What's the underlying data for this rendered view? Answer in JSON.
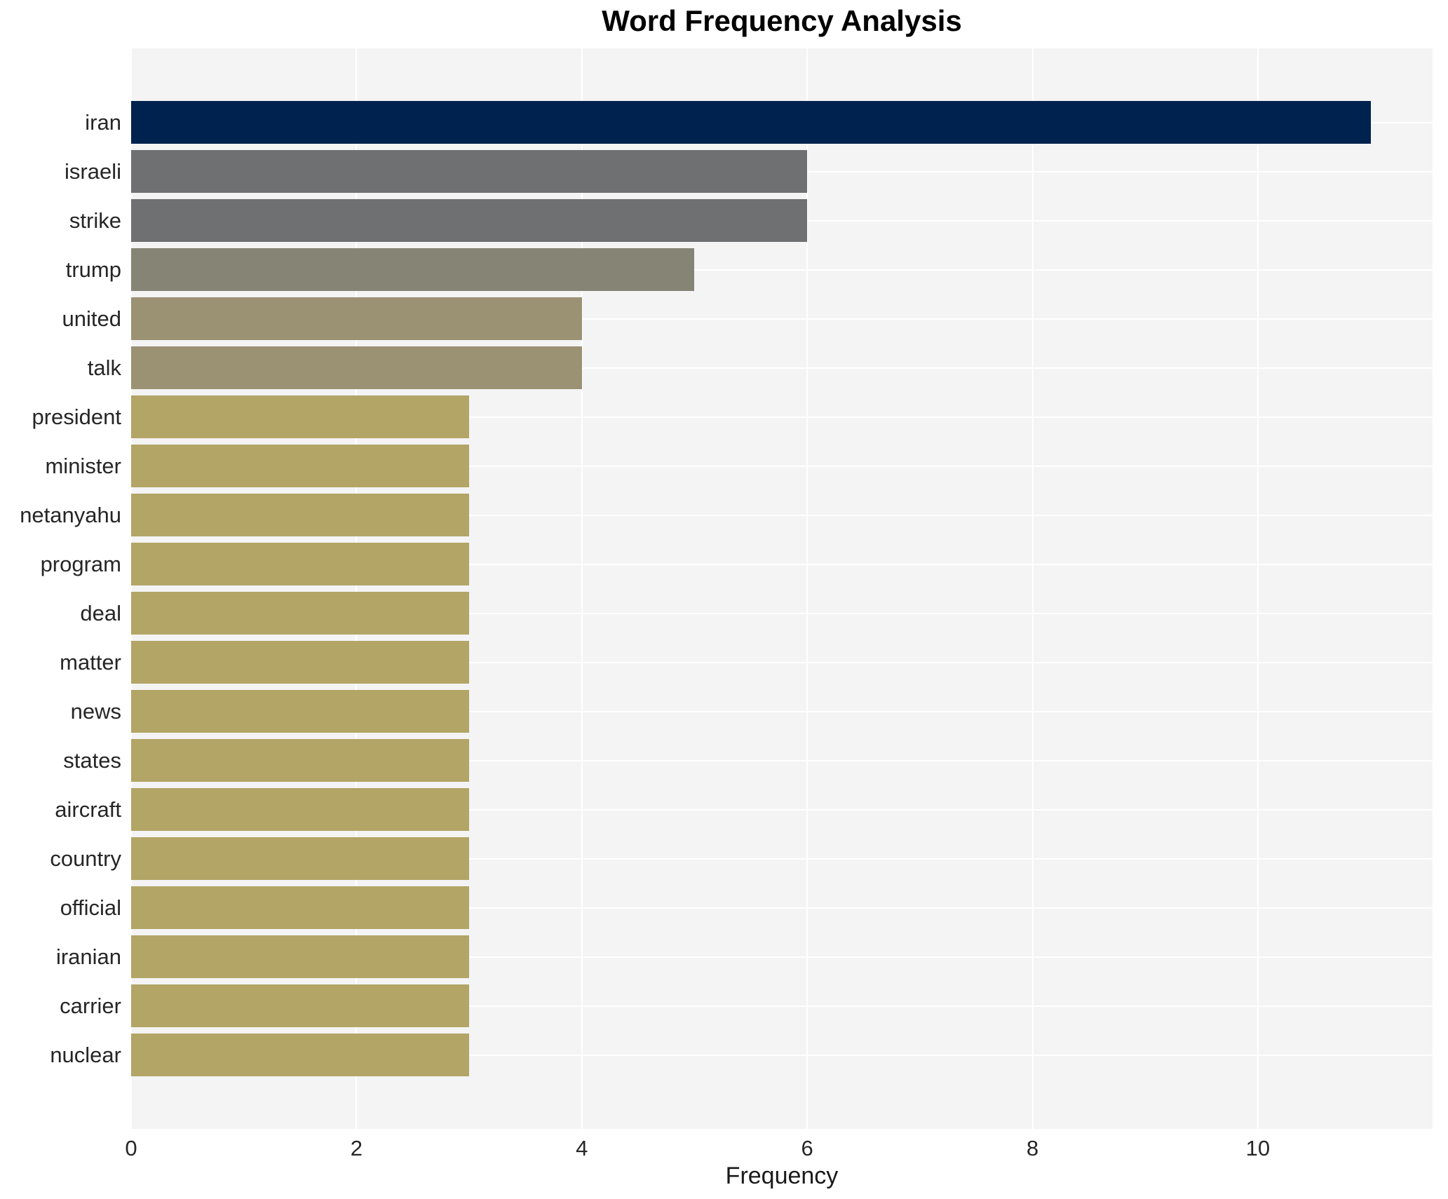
{
  "chart_data": {
    "type": "bar",
    "orientation": "horizontal",
    "title": "Word Frequency Analysis",
    "xlabel": "Frequency",
    "ylabel": "",
    "categories": [
      "iran",
      "israeli",
      "strike",
      "trump",
      "united",
      "talk",
      "president",
      "minister",
      "netanyahu",
      "program",
      "deal",
      "matter",
      "news",
      "states",
      "aircraft",
      "country",
      "official",
      "iranian",
      "carrier",
      "nuclear"
    ],
    "values": [
      11,
      6,
      6,
      5,
      4,
      4,
      3,
      3,
      3,
      3,
      3,
      3,
      3,
      3,
      3,
      3,
      3,
      3,
      3,
      3
    ],
    "bar_colors": [
      "#00224e",
      "#6f7072",
      "#6f7072",
      "#868575",
      "#9b9274",
      "#9b9274",
      "#b2a566",
      "#b2a566",
      "#b2a566",
      "#b2a566",
      "#b2a566",
      "#b2a566",
      "#b2a566",
      "#b2a566",
      "#b2a566",
      "#b2a566",
      "#b2a566",
      "#b2a566",
      "#b2a566",
      "#b2a566"
    ],
    "xticks": [
      "0",
      "2",
      "4",
      "6",
      "8",
      "10"
    ],
    "xtick_values": [
      0,
      2,
      4,
      6,
      8,
      10
    ],
    "xlim": [
      0,
      11.55
    ],
    "grid": true,
    "legend": false,
    "plot_background": "#f4f4f5",
    "gridline_color": "#ffffff",
    "tick_text_color": "#262626",
    "title_color": "#000000"
  }
}
